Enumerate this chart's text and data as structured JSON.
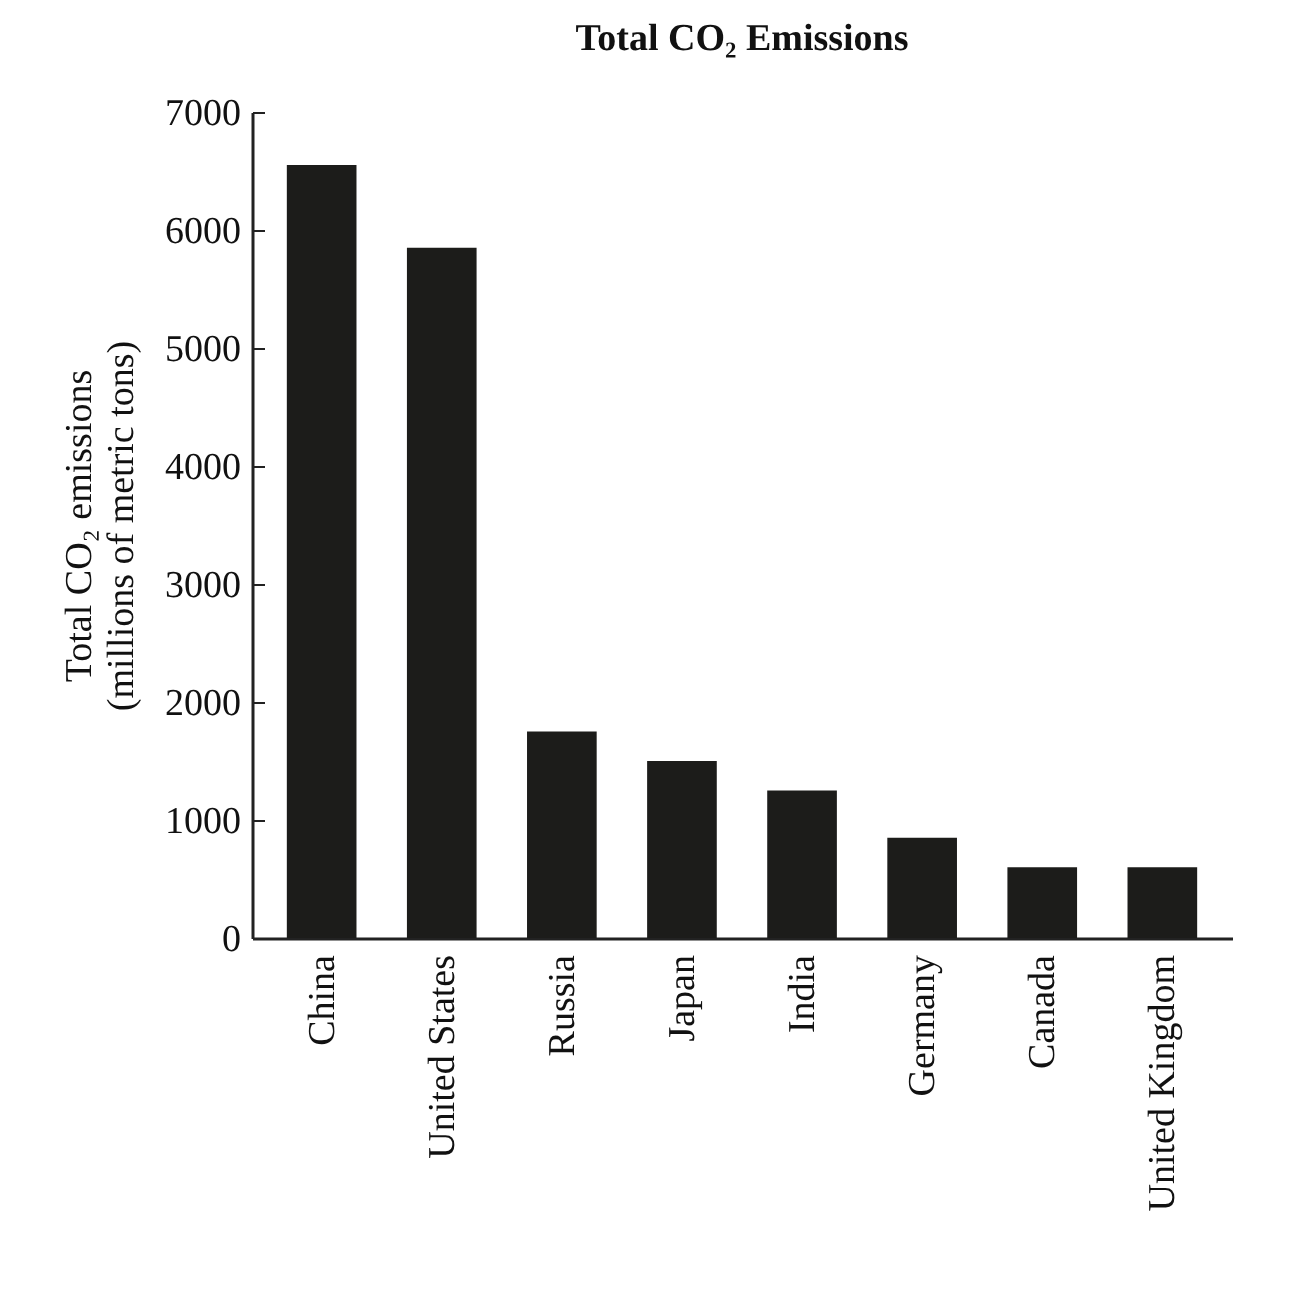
{
  "chart_data": {
    "type": "bar",
    "title": "Total CO₂ Emissions",
    "ylabel": "Total CO₂ emissions\n(millions of metric tons)",
    "categories": [
      "China",
      "United States",
      "Russia",
      "Japan",
      "India",
      "Germany",
      "Canada",
      "United Kingdom"
    ],
    "values": [
      6550,
      5850,
      1750,
      1500,
      1250,
      850,
      600,
      600
    ],
    "color": "#1c1c1a",
    "ylim": [
      0,
      7000
    ],
    "yticks": [
      0,
      1000,
      2000,
      3000,
      4000,
      5000,
      6000,
      7000
    ],
    "grid": false
  }
}
